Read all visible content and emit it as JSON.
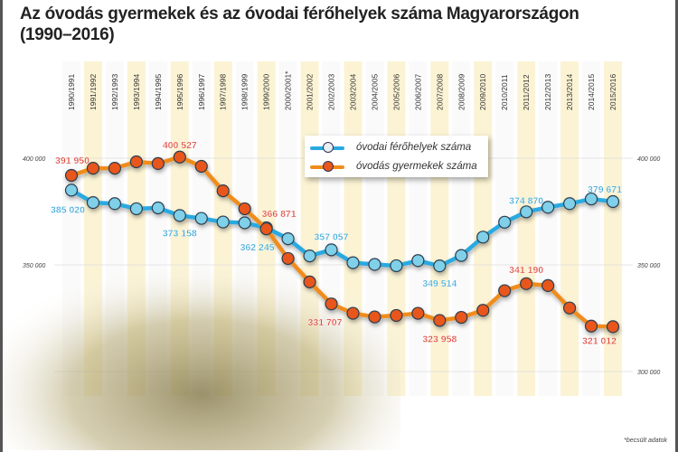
{
  "title_line1": "Az óvodás gyermekek és az óvodai férőhelyek száma Magyarországon",
  "title_line2": "(1990–2016)",
  "footnote": "*becsült adatok",
  "colors": {
    "blue": "#29a9e0",
    "blue_dot": "#7fd0e8",
    "orange": "#f08c1e",
    "orange_dot": "#e8561e",
    "stripe": "#fbf3d4",
    "blue_label": "#3aa8d8",
    "orange_label": "#e0453a"
  },
  "chart_data": {
    "type": "line",
    "title": "Az óvodás gyermekek és az óvodai férőhelyek száma Magyarországon (1990–2016)",
    "categories": [
      "1990/1991",
      "1991/1992",
      "1992/1993",
      "1993/1994",
      "1994/1995",
      "1995/1996",
      "1996/1997",
      "1997/1998",
      "1998/1999",
      "1999/2000",
      "2000/2001*",
      "2001/2002",
      "2002/2003",
      "2003/2004",
      "2004/2005",
      "2005/2006",
      "2006/2007",
      "2007/2008",
      "2008/2009",
      "2009/2010",
      "2010/2011",
      "2011/2012",
      "2012/2013",
      "2013/2014",
      "2014/2015",
      "2015/2016"
    ],
    "ylim": [
      300000,
      410000
    ],
    "yticks": [
      400000,
      350000,
      300000
    ],
    "ytick_labels_left": [
      "400 000",
      "350 000"
    ],
    "ytick_labels_right": [
      "400 000",
      "350 000",
      "300 000"
    ],
    "legend_position": "top-center",
    "series": [
      {
        "name": "óvodai férőhelyek száma",
        "color": "blue",
        "values": [
          385020,
          379200,
          378700,
          376300,
          376700,
          373158,
          371800,
          370100,
          369700,
          367400,
          362245,
          354200,
          357057,
          351000,
          350200,
          349600,
          352000,
          349514,
          354400,
          363000,
          370000,
          374870,
          377000,
          378700,
          380900,
          379671
        ]
      },
      {
        "name": "óvodás gyermekek száma",
        "color": "orange",
        "values": [
          391950,
          395300,
          395300,
          398300,
          397500,
          400527,
          396200,
          384700,
          376300,
          366871,
          353000,
          342000,
          331707,
          327300,
          325600,
          326300,
          327300,
          323958,
          325400,
          328700,
          337900,
          341190,
          340300,
          329800,
          321300,
          321012
        ]
      }
    ],
    "annotations": [
      {
        "series": 1,
        "index": 0,
        "text": "391 950"
      },
      {
        "series": 1,
        "index": 5,
        "text": "400 527"
      },
      {
        "series": 1,
        "index": 9,
        "text": "366 871"
      },
      {
        "series": 1,
        "index": 12,
        "text": "331 707"
      },
      {
        "series": 1,
        "index": 17,
        "text": "323 958"
      },
      {
        "series": 1,
        "index": 21,
        "text": "341 190"
      },
      {
        "series": 1,
        "index": 25,
        "text": "321 012"
      },
      {
        "series": 0,
        "index": 0,
        "text": "385 020"
      },
      {
        "series": 0,
        "index": 5,
        "text": "373 158"
      },
      {
        "series": 0,
        "index": 10,
        "text": "362 245"
      },
      {
        "series": 0,
        "index": 12,
        "text": "357 057"
      },
      {
        "series": 0,
        "index": 17,
        "text": "349 514"
      },
      {
        "series": 0,
        "index": 21,
        "text": "374 870"
      },
      {
        "series": 0,
        "index": 25,
        "text": "379 671"
      }
    ]
  }
}
